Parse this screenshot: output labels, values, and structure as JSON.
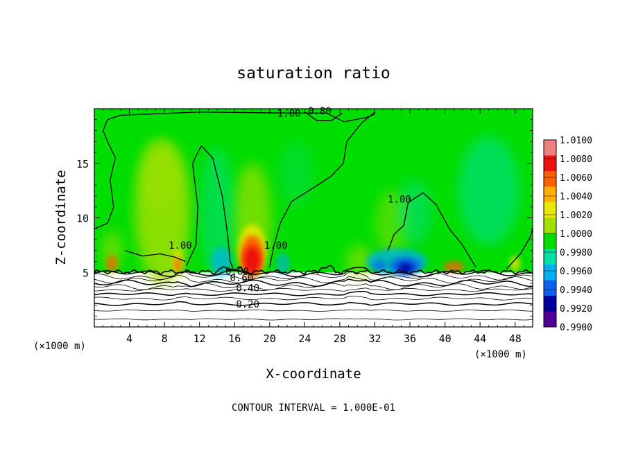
{
  "chart_data": {
    "type": "heatmap",
    "title": "saturation ratio",
    "xlabel": "X-coordinate",
    "ylabel": "Z-coordinate",
    "x_unit": "(×1000 m)",
    "x_unit_right": "(×1000 m)",
    "footer": "CONTOUR INTERVAL = 1.000E-01",
    "xlim": [
      0,
      50
    ],
    "ylim": [
      0,
      20
    ],
    "x_ticks": [
      4,
      8,
      12,
      16,
      20,
      24,
      28,
      32,
      36,
      40,
      44,
      48
    ],
    "y_ticks": [
      5,
      10,
      15
    ],
    "colorbar": {
      "levels": [
        "1.0100",
        "1.0080",
        "1.0060",
        "1.0040",
        "1.0020",
        "1.0000",
        "0.9980",
        "0.9960",
        "0.9940",
        "0.9920",
        "0.9900"
      ],
      "colors": [
        "#f08080",
        "#ee1111",
        "#ff6000",
        "#ffb000",
        "#e8e800",
        "#a0e000",
        "#00dd00",
        "#00e0a0",
        "#00b0f0",
        "#1060f0",
        "#0000a0",
        "#500090"
      ]
    },
    "background_color": "#00dd00",
    "cloud_base_z": 5,
    "contour_labels": [
      {
        "text": "1.00",
        "x": 22.2,
        "z": 19.6
      },
      {
        "text": "0.80",
        "x": 25.7,
        "z": 19.8
      },
      {
        "text": "1.00",
        "x": 9.8,
        "z": 7.5
      },
      {
        "text": "1.00",
        "x": 20.7,
        "z": 7.5
      },
      {
        "text": "1.00",
        "x": 34.8,
        "z": 11.7
      },
      {
        "text": "0.80",
        "x": 16.3,
        "z": 5.1
      },
      {
        "text": "0.60",
        "x": 16.8,
        "z": 4.5
      },
      {
        "text": "0.40",
        "x": 17.5,
        "z": 3.6
      },
      {
        "text": "0.20",
        "x": 17.5,
        "z": 2.1
      }
    ],
    "subsat_contours": [
      {
        "z": 4.9,
        "bold": true
      },
      {
        "z": 4.6,
        "bold": false
      },
      {
        "z": 4.3,
        "bold": false
      },
      {
        "z": 4.0,
        "bold": true
      },
      {
        "z": 3.7,
        "bold": false
      },
      {
        "z": 3.4,
        "bold": false
      },
      {
        "z": 3.0,
        "bold": true
      },
      {
        "z": 2.6,
        "bold": false
      },
      {
        "z": 2.1,
        "bold": true
      },
      {
        "z": 1.5,
        "bold": false
      },
      {
        "z": 0.7,
        "bold": false
      }
    ]
  }
}
